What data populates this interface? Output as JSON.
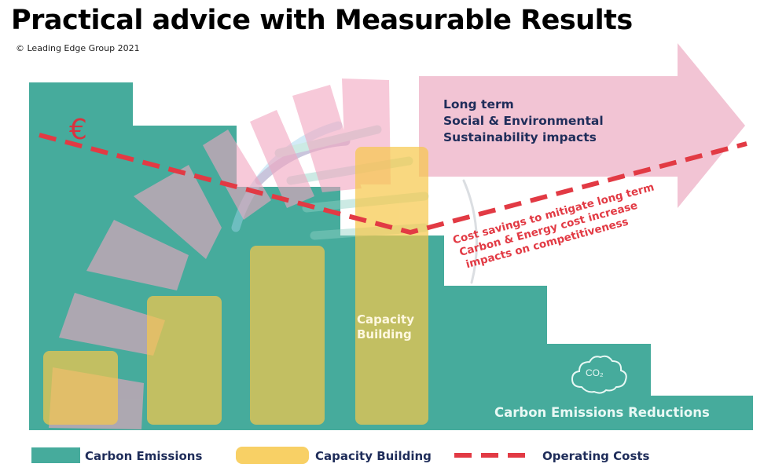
{
  "title": "Practical advice with Measurable Results",
  "copyright": "© Leading Edge Group 2021",
  "euro_symbol": "€",
  "arrow_text": [
    "Long term",
    "Social  & Environmental",
    "Sustainability impacts"
  ],
  "cost_text": [
    "Cost savings to mitigate long term",
    "Carbon & Energy cost increase",
    "impacts on competitiveness"
  ],
  "capacity_label": [
    "Capacity",
    "Building"
  ],
  "co2_label": "CO₂",
  "reductions_label": "Carbon Emissions Reductions",
  "legend": [
    {
      "label": "Carbon Emissions",
      "icon": "teal-rect"
    },
    {
      "label": "Capacity Building",
      "icon": "yellow-rounded-rect"
    },
    {
      "label": "Operating Costs",
      "icon": "red-dashed-line"
    }
  ],
  "colors": {
    "teal": "#46ab9c",
    "yellow": "#f7c84a",
    "pink": "#f2c4d4",
    "red": "#e23a44",
    "navy": "#1f2d5a"
  }
}
